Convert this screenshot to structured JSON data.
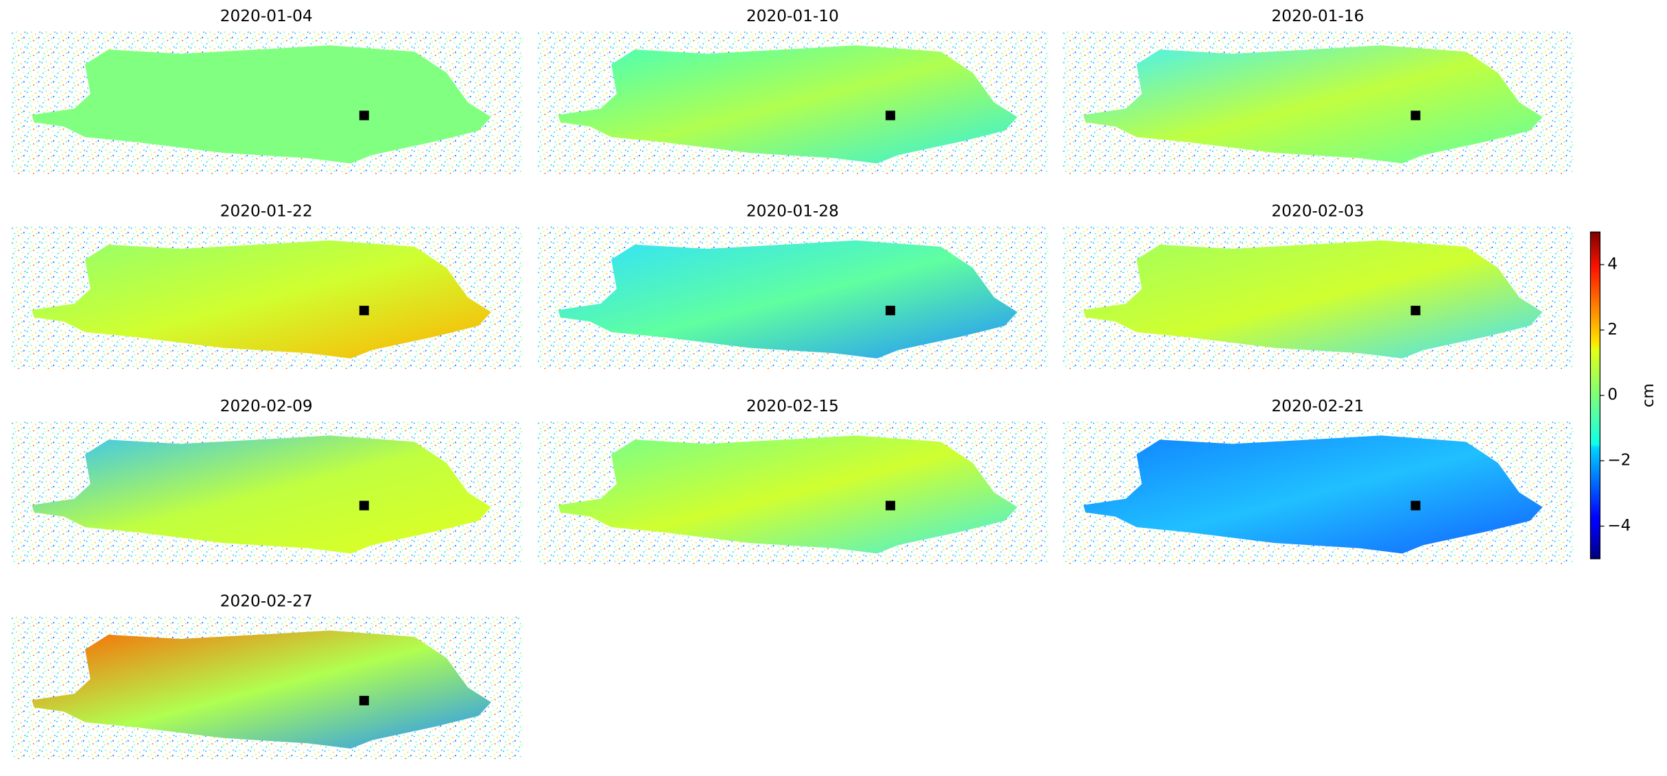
{
  "chart_data": {
    "type": "image-grid",
    "titles": [
      "2020-01-04",
      "2020-01-10",
      "2020-01-16",
      "2020-01-22",
      "2020-01-28",
      "2020-02-03",
      "2020-02-09",
      "2020-02-15",
      "2020-02-21",
      "2020-02-27"
    ],
    "colormap": "jet",
    "clim": [
      -5,
      5
    ],
    "cticks": [
      {
        "value": 4,
        "label": "4"
      },
      {
        "value": 2,
        "label": "2"
      },
      {
        "value": 0,
        "label": "0"
      },
      {
        "value": -2,
        "label": "−2"
      },
      {
        "value": -4,
        "label": "−4"
      }
    ],
    "colorbar_label": "cm"
  }
}
